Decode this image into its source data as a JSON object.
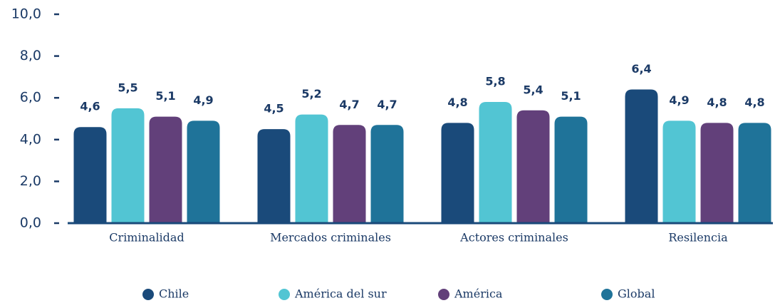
{
  "chart_data": {
    "type": "bar",
    "categories": [
      "Criminalidad",
      "Mercados criminales",
      "Actores criminales",
      "Resilencia"
    ],
    "series": [
      {
        "name": "Chile",
        "color": "#1a4a7a",
        "values": [
          4.6,
          4.5,
          4.8,
          6.4
        ],
        "value_labels": [
          "4,6",
          "4,5",
          "4,8",
          "6,4"
        ]
      },
      {
        "name": "América del sur",
        "color": "#52c5d3",
        "values": [
          5.5,
          5.2,
          5.8,
          4.9
        ],
        "value_labels": [
          "5,5",
          "5,2",
          "5,8",
          "4,9"
        ]
      },
      {
        "name": "América",
        "color": "#62407a",
        "values": [
          5.1,
          4.7,
          5.4,
          4.8
        ],
        "value_labels": [
          "5,1",
          "4,7",
          "5,4",
          "4,8"
        ]
      },
      {
        "name": "Global",
        "color": "#1f7399",
        "values": [
          4.9,
          4.7,
          5.1,
          4.8
        ],
        "value_labels": [
          "4,9",
          "4,7",
          "5,1",
          "4,8"
        ]
      }
    ],
    "ylim": [
      0,
      10
    ],
    "yticks": [
      {
        "value": 0,
        "label": "0,0"
      },
      {
        "value": 2,
        "label": "2,0"
      },
      {
        "value": 4,
        "label": "4,0"
      },
      {
        "value": 6,
        "label": "6,0"
      },
      {
        "value": 8,
        "label": "8,0"
      },
      {
        "value": 10,
        "label": "10,0"
      }
    ],
    "legend": "bottom"
  }
}
